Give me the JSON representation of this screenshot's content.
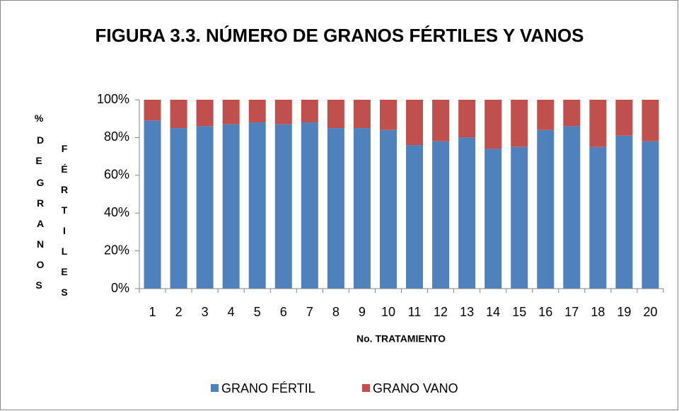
{
  "chart_data": {
    "type": "stacked_bar",
    "title": "FIGURA 3.3. NÚMERO DE GRANOS FÉRTILES Y VANOS",
    "x_label": "No. TRATAMIENTO",
    "y_label": "% DE GRANOS FÉRTILES",
    "categories": [
      "1",
      "2",
      "3",
      "4",
      "5",
      "6",
      "7",
      "8",
      "9",
      "10",
      "11",
      "12",
      "13",
      "14",
      "15",
      "16",
      "17",
      "18",
      "19",
      "20"
    ],
    "series": [
      {
        "name": "GRANO FÉRTIL",
        "color": "#4f81bd",
        "values": [
          89,
          85,
          86,
          87,
          88,
          87,
          88,
          85,
          85,
          84,
          76,
          78,
          80,
          74,
          75,
          84,
          86,
          75,
          81,
          78
        ]
      },
      {
        "name": "GRANO VANO",
        "color": "#c0504d",
        "values": [
          11,
          15,
          14,
          13,
          12,
          13,
          12,
          15,
          15,
          16,
          24,
          22,
          20,
          26,
          25,
          16,
          14,
          25,
          19,
          22
        ]
      }
    ],
    "ylim": [
      0,
      100
    ],
    "yticks": [
      {
        "value": 0,
        "label": "0%"
      },
      {
        "value": 20,
        "label": "20%"
      },
      {
        "value": 40,
        "label": "40%"
      },
      {
        "value": 60,
        "label": "60%"
      },
      {
        "value": 80,
        "label": "80%"
      },
      {
        "value": 100,
        "label": "100%"
      }
    ],
    "grid": false,
    "legend": "bottom"
  }
}
